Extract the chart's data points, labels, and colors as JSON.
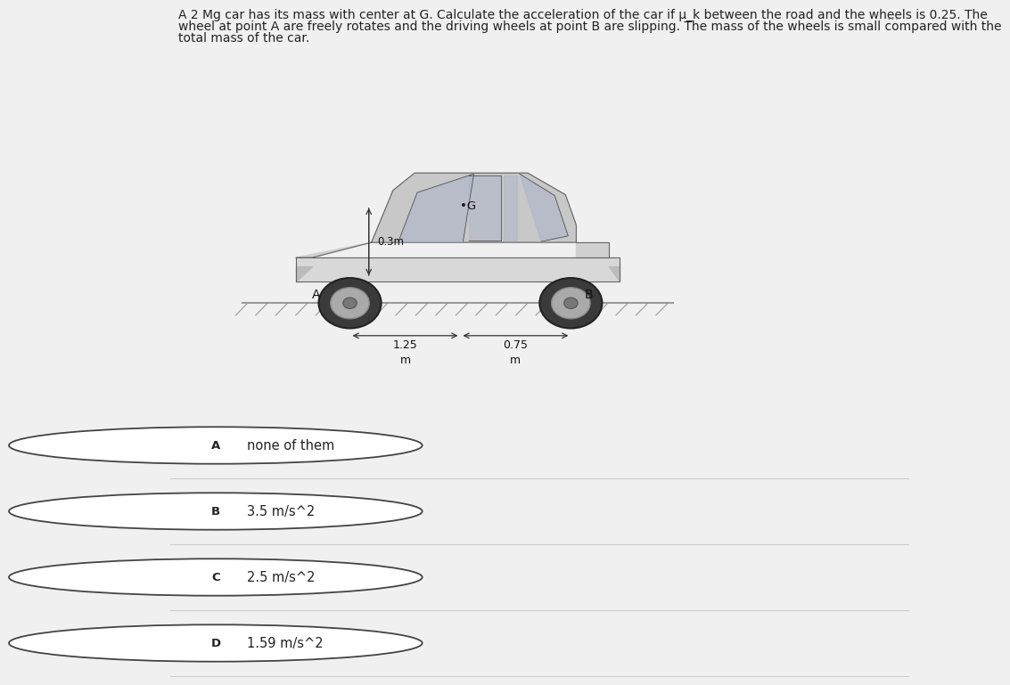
{
  "title_text_line1": "A 2 Mg car has its mass with center at G. Calculate the acceleration of the car if μ_k between the road and the wheels is 0.25. The",
  "title_text_line2": "wheel at point A are freely rotates and the driving wheels at point B are slipping. The mass of the wheels is small compared with the",
  "title_text_line3": "total mass of the car.",
  "bg_color": "#f0f0f0",
  "panel_bg": "#e0e0e0",
  "label_A": "A",
  "label_B": "B",
  "label_G": "•G",
  "dim_height": "0.3m",
  "dim_left": "1.25",
  "dim_right": "0.75",
  "dim_unit_left": "m",
  "dim_unit_right": "m",
  "options": [
    {
      "letter": "A",
      "text": "none of them"
    },
    {
      "letter": "B",
      "text": "3.5 m/s^2"
    },
    {
      "letter": "C",
      "text": "2.5 m/s^2"
    },
    {
      "letter": "D",
      "text": "1.59 m/s^2"
    }
  ],
  "option_bg": "#f5f5f5",
  "option_border": "#cccccc",
  "circle_color": "#444444",
  "text_color": "#222222",
  "dots_color": "#777777",
  "title_fontsize": 10.0,
  "option_fontsize": 10.5,
  "letter_fontsize": 9.5
}
